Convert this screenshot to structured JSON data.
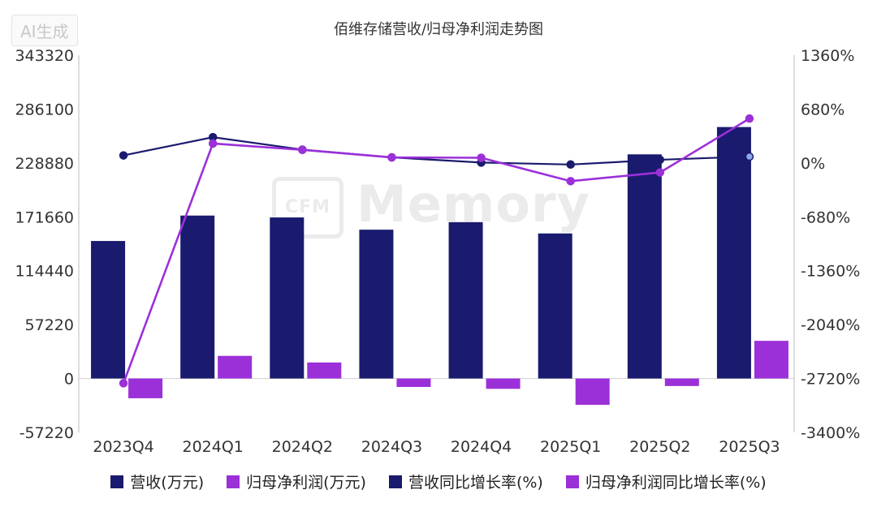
{
  "badge": "AI生成",
  "watermark": {
    "box": "CFM",
    "text": "Memory"
  },
  "chart_data": {
    "type": "bar",
    "title": "佰维存储营收/归母净利润走势图",
    "categories": [
      "2023Q4",
      "2024Q1",
      "2024Q2",
      "2024Q3",
      "2024Q4",
      "2025Q1",
      "2025Q2",
      "2025Q3"
    ],
    "series": [
      {
        "name": "营收(万元)",
        "axis": "left",
        "kind": "bar",
        "color": "#1a1a6e",
        "values": [
          146000,
          173000,
          171000,
          158000,
          166000,
          154000,
          238000,
          267000
        ]
      },
      {
        "name": "归母净利润(万元)",
        "axis": "left",
        "kind": "bar",
        "color": "#9b30d9",
        "values": [
          -21000,
          24000,
          17000,
          -9000,
          -11000,
          -28000,
          -8000,
          40000
        ]
      },
      {
        "name": "营收同比增长率(%)",
        "axis": "right",
        "kind": "line",
        "color": "#1a1a6e",
        "values": [
          95,
          325,
          168,
          70,
          5,
          -20,
          40,
          80
        ]
      },
      {
        "name": "归母净利润同比增长率(%)",
        "axis": "right",
        "kind": "line",
        "color": "#9b30d9",
        "values": [
          -2780,
          245,
          165,
          70,
          65,
          -230,
          -120,
          560
        ]
      }
    ],
    "y_left": {
      "ticks": [
        "343320",
        "286100",
        "228880",
        "171660",
        "114440",
        "57220",
        "0",
        "-57220"
      ],
      "min": -57220,
      "max": 343320
    },
    "y_right": {
      "ticks": [
        "1360%",
        "680%",
        "0%",
        "-680%",
        "-1360%",
        "-2040%",
        "-2720%",
        "-3400%"
      ],
      "min": -3400,
      "max": 1360
    },
    "legend_position": "bottom"
  }
}
